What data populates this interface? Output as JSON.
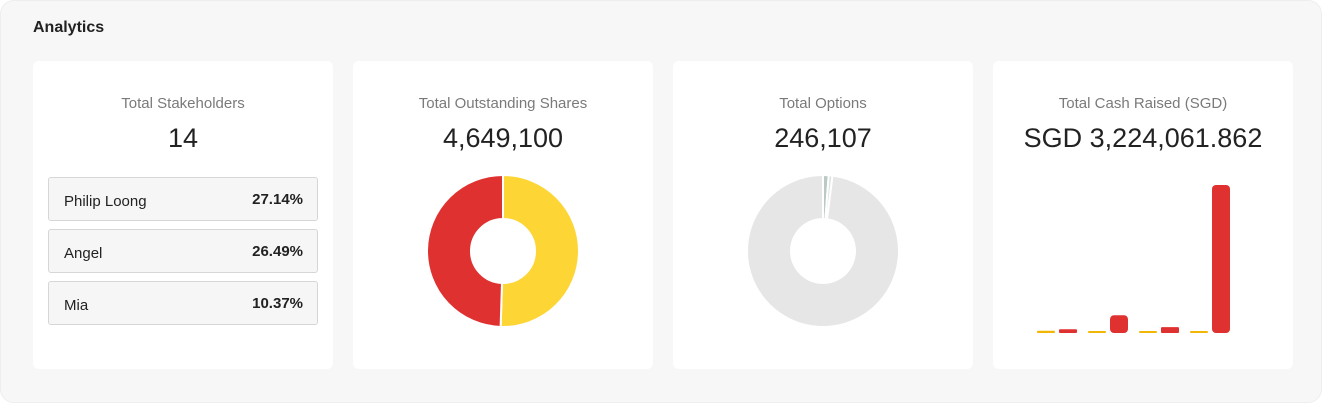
{
  "analytics": {
    "title": "Analytics",
    "stakeholders": {
      "label": "Total Stakeholders",
      "value": "14",
      "top": [
        {
          "name": "Philip Loong",
          "pct": "27.14%"
        },
        {
          "name": "Angel",
          "pct": "26.49%"
        },
        {
          "name": "Mia",
          "pct": "10.37%"
        }
      ]
    },
    "shares": {
      "label": "Total Outstanding Shares",
      "value": "4,649,100"
    },
    "options": {
      "label": "Total Options",
      "value": "246,107"
    },
    "cash": {
      "label": "Total Cash Raised (SGD)",
      "value": "SGD 3,224,061.862"
    }
  },
  "chart_data": [
    {
      "type": "pie",
      "chart": "outstanding-shares-donut",
      "values": [
        50.5,
        49.5
      ],
      "colors": [
        "#fdd535",
        "#e03131"
      ]
    },
    {
      "type": "pie",
      "chart": "options-donut",
      "values": [
        1.2,
        0.8,
        98.0
      ],
      "colors": [
        "#b9cac4",
        "#dbe3e0",
        "#e6e6e6"
      ]
    },
    {
      "type": "bar",
      "chart": "cash-raised-bars",
      "values": [
        1.5,
        2.5,
        1.0,
        12.0,
        0.5,
        4.0,
        0.5,
        100.0
      ],
      "colors": [
        "#f2b705",
        "#e03131",
        "#f2b705",
        "#e03131",
        "#f2b705",
        "#e03131",
        "#f2b705",
        "#e03131"
      ],
      "ylim": [
        0,
        100
      ]
    }
  ]
}
